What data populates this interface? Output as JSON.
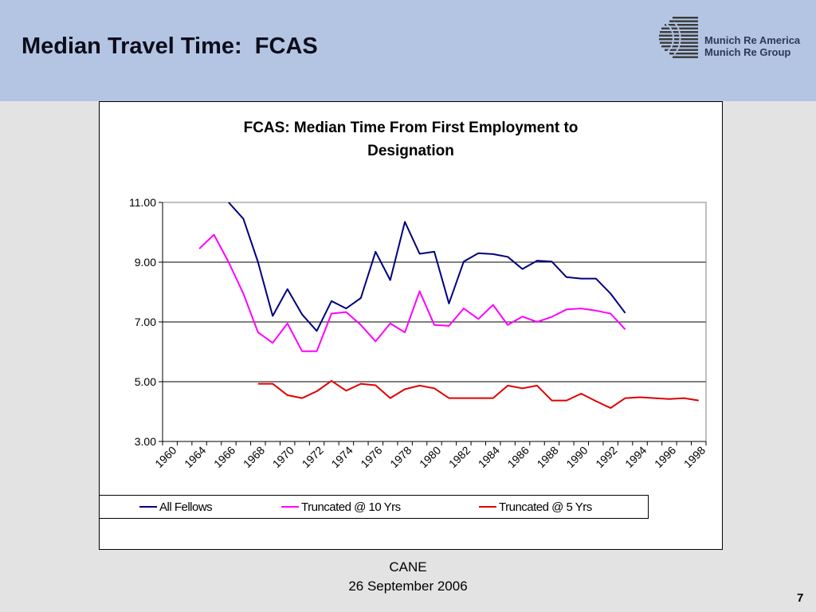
{
  "slide": {
    "title": "Median Travel Time:  FCAS",
    "logo_line1": "Munich Re America",
    "logo_line2": "Munich Re Group",
    "footer_line1": "CANE",
    "footer_line2": "26 September 2006",
    "page_number": "7"
  },
  "chart_data": {
    "type": "line",
    "title_line1": "FCAS:  Median Time From First Employment to",
    "title_line2": "Designation",
    "xlabel": "",
    "ylabel": "",
    "ylim": [
      3.0,
      11.0
    ],
    "yticks": [
      "3.00",
      "5.00",
      "7.00",
      "9.00",
      "11.00"
    ],
    "xticks": [
      "1960",
      "1964",
      "1966",
      "1968",
      "1970",
      "1972",
      "1974",
      "1976",
      "1978",
      "1980",
      "1982",
      "1984",
      "1986",
      "1988",
      "1990",
      "1992",
      "1994",
      "1996",
      "1998"
    ],
    "grid": "horizontal",
    "legend_position": "bottom",
    "series": [
      {
        "name": "All Fellows",
        "color": "#000080",
        "points": [
          [
            1967,
            11.0
          ],
          [
            1968,
            10.45
          ],
          [
            1969,
            9.0
          ],
          [
            1970,
            7.2
          ],
          [
            1971,
            8.1
          ],
          [
            1972,
            7.25
          ],
          [
            1973,
            6.7
          ],
          [
            1974,
            7.7
          ],
          [
            1975,
            7.45
          ],
          [
            1976,
            7.8
          ],
          [
            1977,
            9.35
          ],
          [
            1978,
            8.4
          ],
          [
            1979,
            10.35
          ],
          [
            1980,
            9.28
          ],
          [
            1981,
            9.35
          ],
          [
            1982,
            7.62
          ],
          [
            1983,
            9.02
          ],
          [
            1984,
            9.3
          ],
          [
            1985,
            9.27
          ],
          [
            1986,
            9.18
          ],
          [
            1987,
            8.77
          ],
          [
            1988,
            9.05
          ],
          [
            1989,
            9.02
          ],
          [
            1990,
            8.5
          ],
          [
            1991,
            8.45
          ],
          [
            1992,
            8.45
          ],
          [
            1993,
            7.95
          ],
          [
            1994,
            7.3
          ]
        ]
      },
      {
        "name": "Truncated @ 10 Yrs",
        "color": "#ff00ff",
        "points": [
          [
            1965,
            9.45
          ],
          [
            1966,
            9.92
          ],
          [
            1967,
            9.0
          ],
          [
            1968,
            7.95
          ],
          [
            1969,
            6.65
          ],
          [
            1970,
            6.3
          ],
          [
            1971,
            6.95
          ],
          [
            1972,
            6.02
          ],
          [
            1973,
            6.02
          ],
          [
            1974,
            7.28
          ],
          [
            1975,
            7.33
          ],
          [
            1976,
            6.9
          ],
          [
            1977,
            6.35
          ],
          [
            1978,
            6.95
          ],
          [
            1979,
            6.65
          ],
          [
            1980,
            8.03
          ],
          [
            1981,
            6.9
          ],
          [
            1982,
            6.87
          ],
          [
            1983,
            7.45
          ],
          [
            1984,
            7.1
          ],
          [
            1985,
            7.57
          ],
          [
            1986,
            6.9
          ],
          [
            1987,
            7.18
          ],
          [
            1988,
            7.0
          ],
          [
            1989,
            7.17
          ],
          [
            1990,
            7.42
          ],
          [
            1991,
            7.45
          ],
          [
            1992,
            7.38
          ],
          [
            1993,
            7.28
          ],
          [
            1994,
            6.75
          ]
        ]
      },
      {
        "name": "Truncated @ 5 Yrs",
        "color": "#e00000",
        "points": [
          [
            1969,
            4.93
          ],
          [
            1970,
            4.93
          ],
          [
            1971,
            4.55
          ],
          [
            1972,
            4.45
          ],
          [
            1973,
            4.68
          ],
          [
            1974,
            5.03
          ],
          [
            1975,
            4.7
          ],
          [
            1976,
            4.93
          ],
          [
            1977,
            4.88
          ],
          [
            1978,
            4.45
          ],
          [
            1979,
            4.75
          ],
          [
            1980,
            4.87
          ],
          [
            1981,
            4.78
          ],
          [
            1982,
            4.45
          ],
          [
            1983,
            4.45
          ],
          [
            1984,
            4.45
          ],
          [
            1985,
            4.45
          ],
          [
            1986,
            4.87
          ],
          [
            1987,
            4.78
          ],
          [
            1988,
            4.87
          ],
          [
            1989,
            4.37
          ],
          [
            1990,
            4.37
          ],
          [
            1991,
            4.6
          ],
          [
            1992,
            4.35
          ],
          [
            1993,
            4.12
          ],
          [
            1994,
            4.45
          ],
          [
            1995,
            4.48
          ],
          [
            1996,
            4.45
          ],
          [
            1997,
            4.42
          ],
          [
            1998,
            4.45
          ],
          [
            1999,
            4.37
          ]
        ]
      }
    ]
  },
  "colors": {
    "header_background": "#b3c5e3",
    "slide_background": "#e3e3e3"
  },
  "icons": {
    "logo": "munich-re-globe-logo"
  }
}
